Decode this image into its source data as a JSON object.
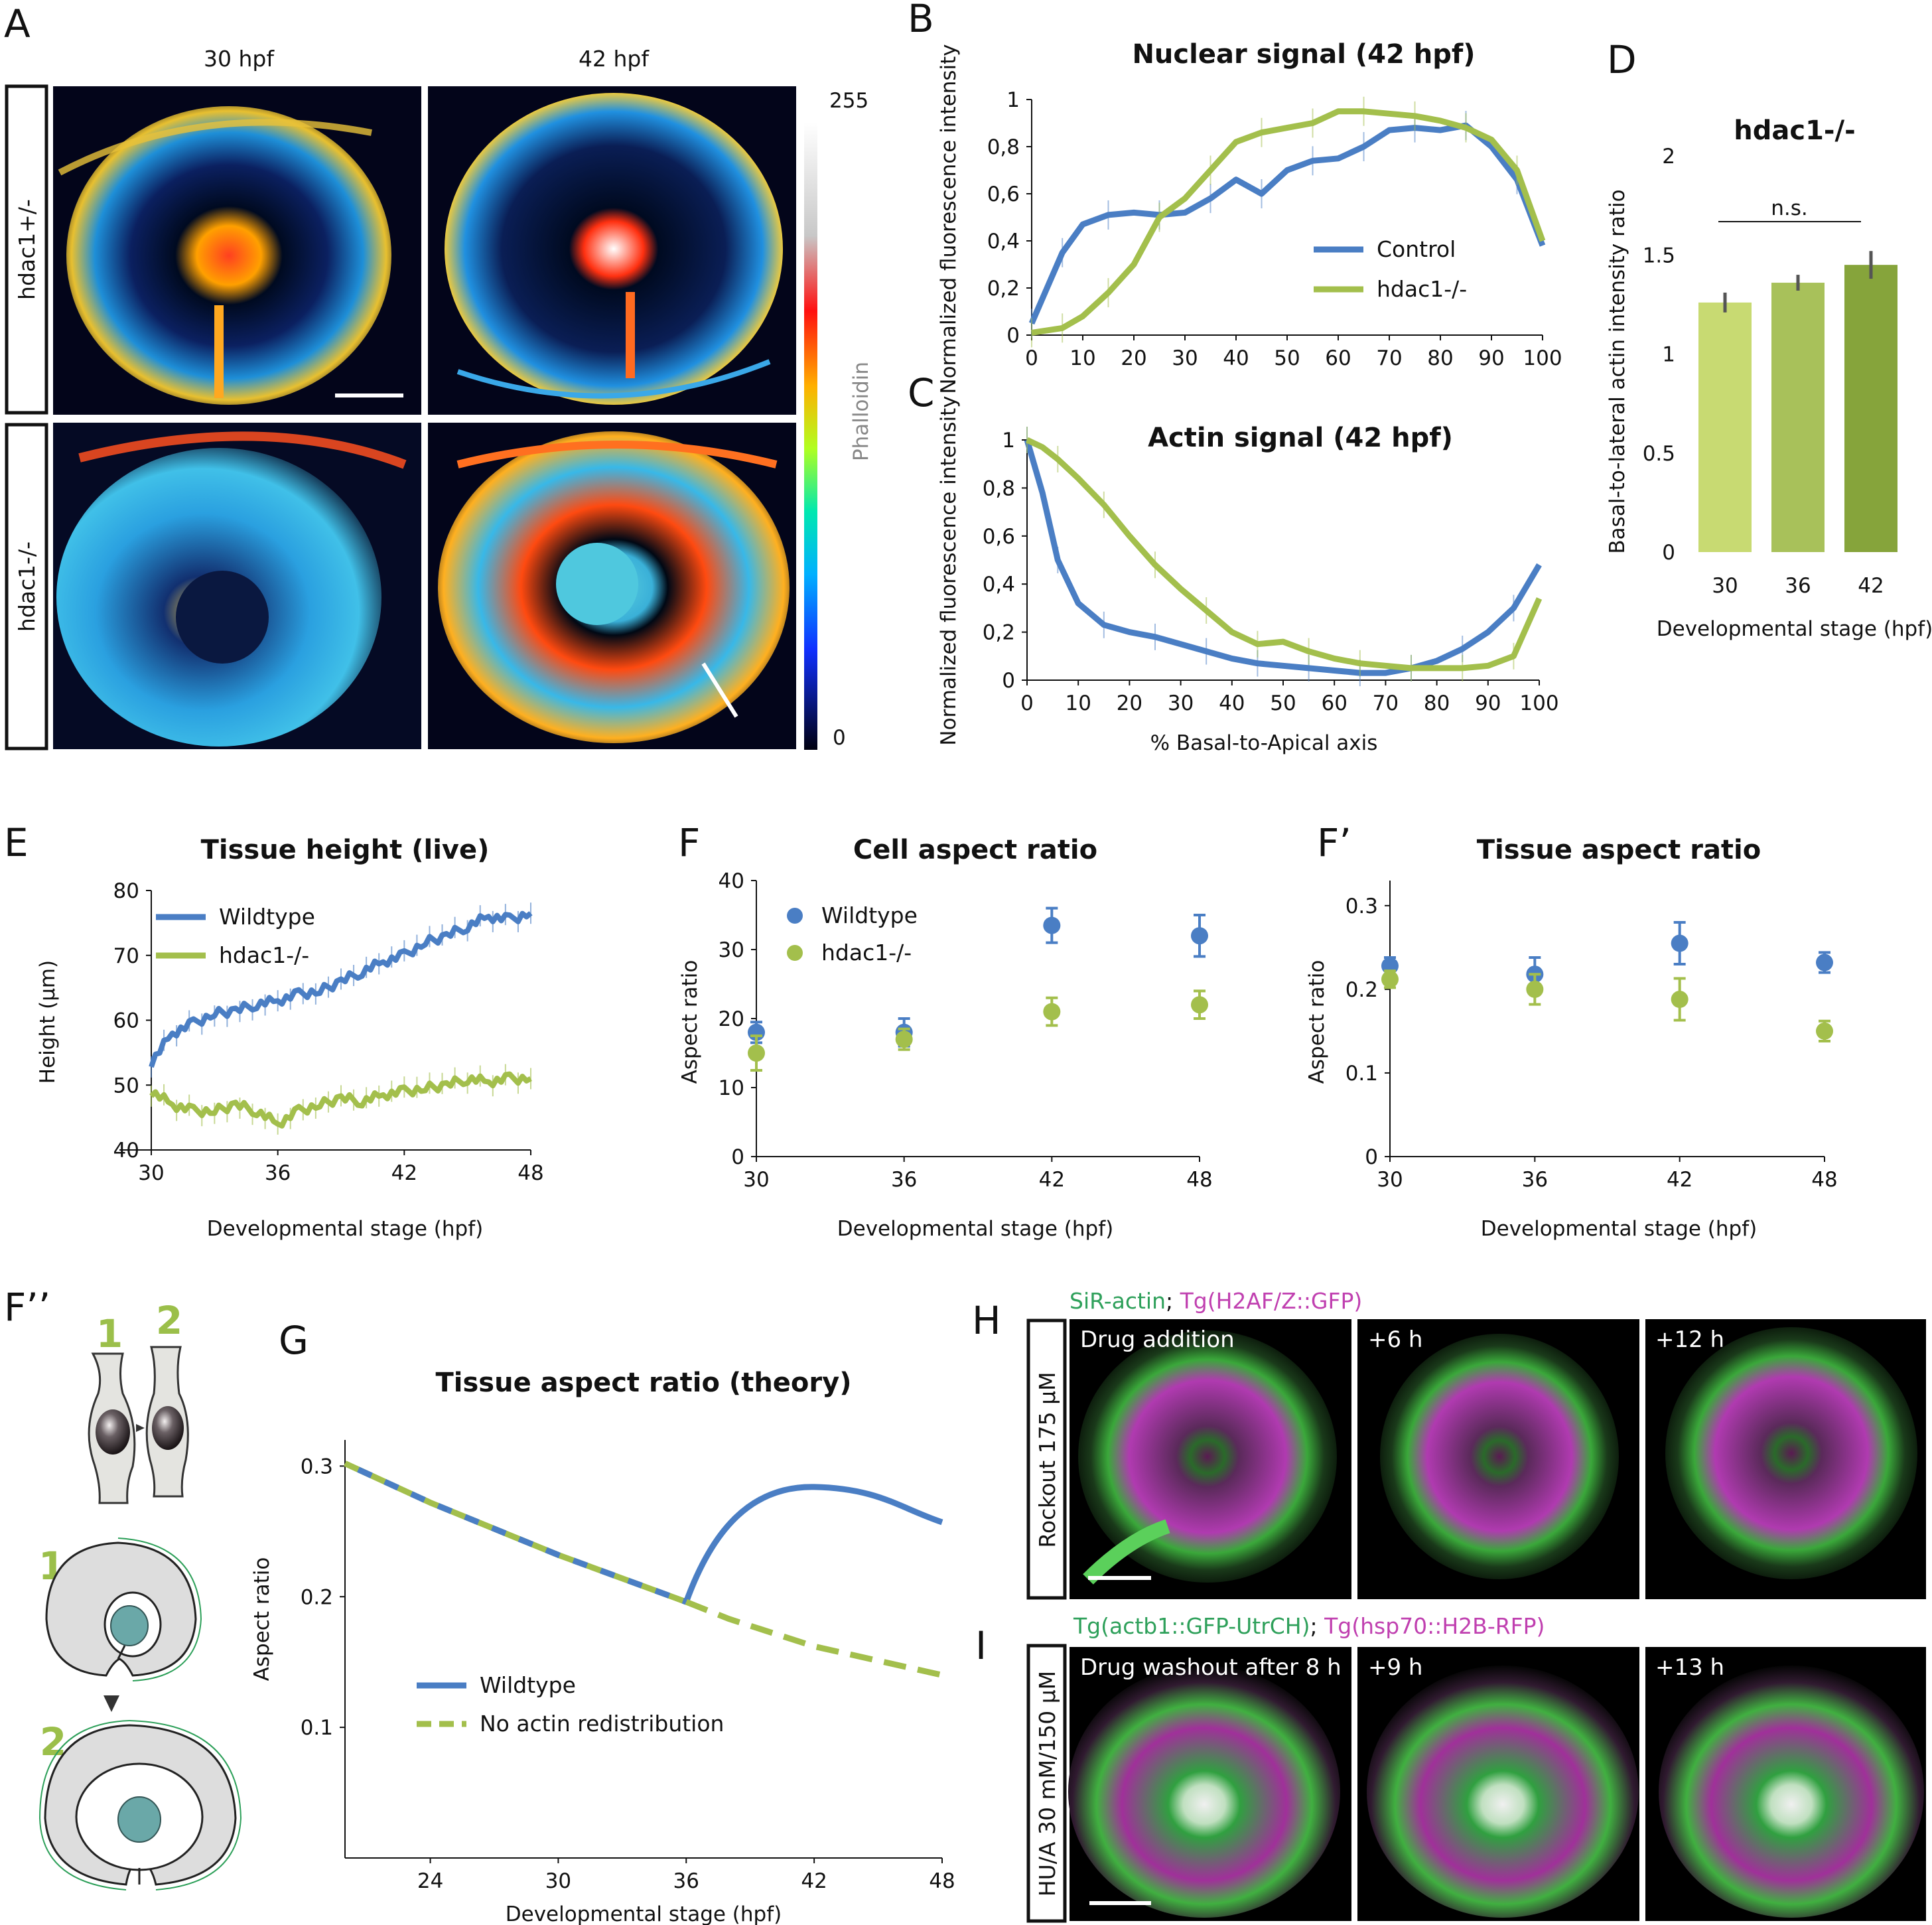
{
  "panel_letters": {
    "A": "A",
    "B": "B",
    "C": "C",
    "D": "D",
    "E": "E",
    "F": "F",
    "Fp": "F’",
    "Fpp": "F’’",
    "G": "G",
    "H": "H",
    "I": "I"
  },
  "colors": {
    "blue": "#4a7ec4",
    "green": "#a3bf4c",
    "green_light": "#c8da72",
    "green_mid": "#a8c15a",
    "green_dark": "#86a43b",
    "label_green": "#2ea05a",
    "label_magenta": "#c040b0",
    "cell_green": "#9bbf4a"
  },
  "panelA": {
    "col_labels": [
      "30 hpf",
      "42 hpf"
    ],
    "row_labels": [
      "hdac1+/-",
      "hdac1-/-"
    ],
    "colorbar": {
      "max": "255",
      "min": "0",
      "label": "Phalloidin"
    },
    "icons": [
      "retina-heatmap-image",
      "scale-bar"
    ]
  },
  "panelFpp": {
    "numbers": [
      "1",
      "2",
      "1",
      "2"
    ],
    "icons": [
      "cell-shape-diagram",
      "eye-cross-section-diagram",
      "arrow-down-icon"
    ]
  },
  "panelH": {
    "legend": {
      "a": "SiR-actin",
      "sep": "; ",
      "b": "Tg(H2AF/Z::GFP)"
    },
    "row_label": "Rockout 175 µM",
    "frames": [
      "Drug addition",
      "+6 h",
      "+12 h"
    ]
  },
  "panelI": {
    "legend": {
      "a": "Tg(actb1::GFP-UtrCH)",
      "sep": "; ",
      "b": "Tg(hsp70::H2B-RFP)"
    },
    "row_label": "HU/A 30 mM/150 µM",
    "frames": [
      "Drug washout after 8 h",
      "+9 h",
      "+13 h"
    ]
  },
  "chart_data": [
    {
      "id": "B",
      "type": "line",
      "title": "Nuclear signal (42 hpf)",
      "xlabel": "",
      "ylabel": "Normalized fluorescence intensity",
      "xlim": [
        0,
        100
      ],
      "ylim": [
        0,
        1
      ],
      "xticks": [
        "0",
        "10",
        "20",
        "30",
        "40",
        "50",
        "60",
        "70",
        "80",
        "90",
        "100"
      ],
      "yticks": [
        "0",
        "0,2",
        "0,4",
        "0,6",
        "0,8",
        "1"
      ],
      "x": [
        0,
        3,
        6,
        10,
        15,
        20,
        25,
        30,
        35,
        40,
        45,
        50,
        55,
        60,
        65,
        70,
        75,
        80,
        85,
        90,
        95,
        100
      ],
      "series": [
        {
          "name": "Control",
          "values": [
            0.05,
            0.2,
            0.35,
            0.47,
            0.51,
            0.52,
            0.51,
            0.52,
            0.58,
            0.66,
            0.6,
            0.7,
            0.74,
            0.75,
            0.8,
            0.87,
            0.88,
            0.87,
            0.89,
            0.8,
            0.66,
            0.38
          ]
        },
        {
          "name": "hdac1-/-",
          "values": [
            0.01,
            0.02,
            0.03,
            0.08,
            0.18,
            0.3,
            0.5,
            0.58,
            0.7,
            0.82,
            0.86,
            0.88,
            0.9,
            0.95,
            0.95,
            0.94,
            0.93,
            0.91,
            0.88,
            0.83,
            0.7,
            0.4
          ]
        }
      ]
    },
    {
      "id": "C",
      "type": "line",
      "title": "Actin signal (42 hpf)",
      "xlabel": "% Basal-to-Apical axis",
      "ylabel": "Normalized fluorescence intensity",
      "xlim": [
        0,
        100
      ],
      "ylim": [
        0,
        1
      ],
      "xticks": [
        "0",
        "10",
        "20",
        "30",
        "40",
        "50",
        "60",
        "70",
        "80",
        "90",
        "100"
      ],
      "yticks": [
        "0",
        "0,2",
        "0,4",
        "0,6",
        "0,8",
        "1"
      ],
      "x": [
        0,
        3,
        6,
        10,
        15,
        20,
        25,
        30,
        35,
        40,
        45,
        50,
        55,
        60,
        65,
        70,
        75,
        80,
        85,
        90,
        95,
        100
      ],
      "series": [
        {
          "name": "Control",
          "values": [
            1.0,
            0.78,
            0.5,
            0.32,
            0.23,
            0.2,
            0.18,
            0.15,
            0.12,
            0.09,
            0.07,
            0.06,
            0.05,
            0.04,
            0.03,
            0.03,
            0.05,
            0.08,
            0.13,
            0.2,
            0.3,
            0.48
          ]
        },
        {
          "name": "hdac1-/-",
          "values": [
            1.0,
            0.97,
            0.92,
            0.84,
            0.73,
            0.6,
            0.48,
            0.38,
            0.29,
            0.2,
            0.15,
            0.16,
            0.12,
            0.09,
            0.07,
            0.06,
            0.05,
            0.05,
            0.05,
            0.06,
            0.1,
            0.34
          ]
        }
      ]
    },
    {
      "id": "D",
      "type": "bar",
      "title": "hdac1-/-",
      "xlabel": "Developmental stage (hpf)",
      "ylabel": "Basal-to-lateral actin intensity ratio",
      "ylim": [
        0,
        2
      ],
      "yticks": [
        "0",
        "0.5",
        "1",
        "1.5",
        "2"
      ],
      "categories": [
        "30",
        "36",
        "42"
      ],
      "values": [
        1.26,
        1.36,
        1.45
      ],
      "errors": [
        0.05,
        0.04,
        0.07
      ],
      "annotation": "n.s."
    },
    {
      "id": "E",
      "type": "line",
      "title": "Tissue height (live)",
      "xlabel": "Developmental stage (hpf)",
      "ylabel": "Height (µm)",
      "xlim": [
        30,
        48
      ],
      "ylim": [
        40,
        80
      ],
      "xticks": [
        "30",
        "36",
        "42",
        "48"
      ],
      "yticks": [
        "40",
        "50",
        "60",
        "70",
        "80"
      ],
      "x": [
        30,
        31,
        32,
        33,
        34,
        35,
        36,
        37,
        38,
        39,
        40,
        41,
        42,
        43,
        44,
        45,
        46,
        47,
        48
      ],
      "series": [
        {
          "name": "Wildtype",
          "values": [
            53.5,
            58,
            59.5,
            61,
            61.5,
            62.5,
            63,
            64,
            64.5,
            66,
            67.5,
            69,
            70,
            72,
            73,
            74.5,
            76,
            75.5,
            76.5
          ]
        },
        {
          "name": "hdac1-/-",
          "values": [
            49,
            47,
            46,
            46,
            47,
            46,
            44,
            46,
            47,
            48,
            47.5,
            48.5,
            49,
            49.5,
            50,
            51,
            50.5,
            51,
            51
          ]
        }
      ]
    },
    {
      "id": "F",
      "type": "scatter",
      "title": "Cell aspect ratio",
      "xlabel": "Developmental stage (hpf)",
      "ylabel": "Aspect ratio",
      "xlim": [
        30,
        48
      ],
      "ylim": [
        0,
        40
      ],
      "xticks": [
        "30",
        "36",
        "42",
        "48"
      ],
      "yticks": [
        "0",
        "10",
        "20",
        "30",
        "40"
      ],
      "x": [
        30,
        36,
        42,
        48
      ],
      "series": [
        {
          "name": "Wildtype",
          "values": [
            18,
            18,
            33.5,
            32
          ],
          "errors": [
            1.5,
            2,
            2.5,
            3
          ]
        },
        {
          "name": "hdac1-/-",
          "values": [
            15,
            17,
            21,
            22
          ],
          "errors": [
            2.5,
            1.5,
            2,
            2
          ]
        }
      ]
    },
    {
      "id": "Fp",
      "type": "scatter",
      "title": "Tissue aspect ratio",
      "xlabel": "Developmental stage (hpf)",
      "ylabel": "Aspect ratio",
      "xlim": [
        30,
        48
      ],
      "ylim": [
        0,
        0.33
      ],
      "xticks": [
        "30",
        "36",
        "42",
        "48"
      ],
      "yticks": [
        "0",
        "0.1",
        "0.2",
        "0.3"
      ],
      "x": [
        30,
        36,
        42,
        48
      ],
      "series": [
        {
          "name": "Wildtype",
          "values": [
            0.228,
            0.218,
            0.255,
            0.232
          ],
          "errors": [
            0.01,
            0.02,
            0.025,
            0.012
          ]
        },
        {
          "name": "hdac1-/-",
          "values": [
            0.212,
            0.2,
            0.188,
            0.15
          ],
          "errors": [
            0.01,
            0.018,
            0.025,
            0.012
          ]
        }
      ]
    },
    {
      "id": "G",
      "type": "line",
      "title": "Tissue aspect ratio (theory)",
      "xlabel": "Developmental stage (hpf)",
      "ylabel": "Aspect ratio",
      "xlim": [
        20,
        48
      ],
      "ylim": [
        0,
        0.32
      ],
      "xticks": [
        "24",
        "30",
        "36",
        "42",
        "48"
      ],
      "yticks": [
        "0.1",
        "0.2",
        "0.3"
      ],
      "x": [
        20,
        24,
        30,
        36,
        38,
        42,
        45,
        48
      ],
      "series": [
        {
          "name": "Wildtype",
          "values": [
            0.302,
            0.272,
            0.232,
            0.196,
            0.255,
            0.284,
            0.272,
            0.257
          ]
        },
        {
          "name": "No actin redistribution",
          "values": [
            0.302,
            0.272,
            0.232,
            0.196,
            0.183,
            0.162,
            0.151,
            0.14
          ]
        }
      ]
    }
  ]
}
